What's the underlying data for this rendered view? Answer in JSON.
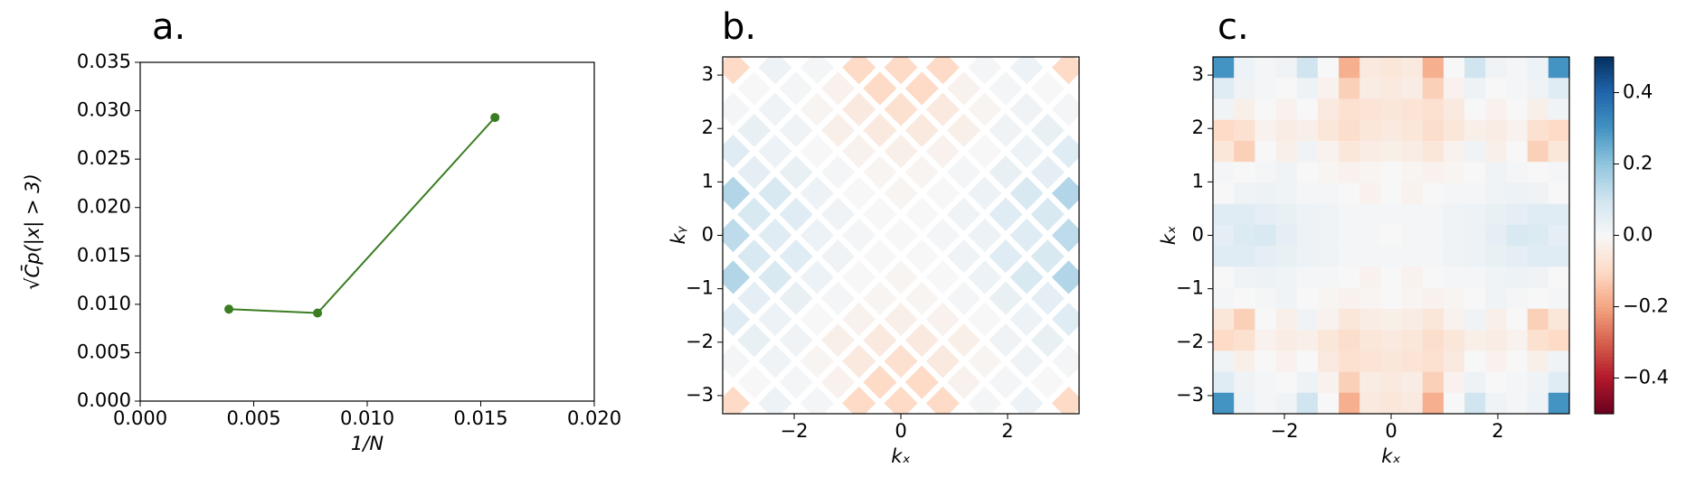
{
  "chart_data": [
    {
      "type": "line",
      "title": "a.",
      "xlabel": "1/N",
      "ylabel": "√C̄p(|x| > 3)",
      "color": "#3a7d22",
      "x": [
        0.00390625,
        0.0078125,
        0.015625
      ],
      "values": [
        0.0095,
        0.0091,
        0.0293
      ],
      "xlim": [
        0,
        0.02
      ],
      "ylim": [
        0,
        0.035
      ],
      "xticks": [
        {
          "value": 0,
          "label": "0.000"
        },
        0.005,
        {
          "value": 0.01,
          "label": "0.010"
        },
        0.015,
        {
          "value": 0.02,
          "label": "0.020"
        }
      ],
      "yticks": [
        {
          "value": 0,
          "label": "0.000"
        },
        0.005,
        {
          "value": 0.01,
          "label": "0.010"
        },
        0.015,
        {
          "value": 0.02,
          "label": "0.020"
        },
        0.025,
        {
          "value": 0.03,
          "label": "0.030"
        },
        0.035
      ]
    },
    {
      "type": "heatmap",
      "marker": "diamond",
      "title": "b.",
      "xlabel": "kₓ",
      "ylabel": "kᵧ",
      "xlim": [
        -3.34,
        3.34
      ],
      "ylim": [
        -3.34,
        3.34
      ],
      "clim": [
        -0.5,
        0.5
      ],
      "xticks": [
        {
          "value": -2,
          "label": "−2"
        },
        0,
        2
      ],
      "yticks": [
        {
          "value": -3,
          "label": "−3"
        },
        {
          "value": -2,
          "label": "−2"
        },
        {
          "value": -1,
          "label": "−1"
        },
        0,
        1,
        2,
        3
      ],
      "z": [
        [
          -0.1,
          null,
          0.03,
          null,
          0.01,
          null,
          -0.1,
          null,
          -0.1,
          null,
          -0.1,
          null,
          0.01,
          null,
          0.03,
          null,
          -0.1
        ],
        [
          null,
          0.0,
          null,
          0.01,
          null,
          -0.02,
          null,
          -0.1,
          null,
          -0.1,
          null,
          -0.02,
          null,
          0.01,
          null,
          0.0,
          null
        ],
        [
          0.01,
          null,
          0.02,
          null,
          -0.01,
          null,
          -0.05,
          null,
          -0.08,
          null,
          -0.05,
          null,
          -0.01,
          null,
          0.02,
          null,
          0.01
        ],
        [
          null,
          0.04,
          null,
          0.02,
          null,
          -0.03,
          null,
          -0.05,
          null,
          -0.05,
          null,
          -0.03,
          null,
          0.02,
          null,
          0.04,
          null
        ],
        [
          0.06,
          null,
          0.03,
          null,
          0.0,
          null,
          -0.02,
          null,
          -0.03,
          null,
          -0.02,
          null,
          0.0,
          null,
          0.03,
          null,
          0.06
        ],
        [
          null,
          0.05,
          null,
          0.04,
          null,
          0.01,
          null,
          -0.01,
          null,
          -0.01,
          null,
          0.01,
          null,
          0.04,
          null,
          0.05,
          null
        ],
        [
          0.15,
          null,
          0.08,
          null,
          0.03,
          null,
          0.0,
          null,
          -0.01,
          null,
          0.0,
          null,
          0.03,
          null,
          0.08,
          null,
          0.15
        ],
        [
          null,
          0.08,
          null,
          0.06,
          null,
          0.02,
          null,
          0.0,
          null,
          0.0,
          null,
          0.02,
          null,
          0.06,
          null,
          0.08,
          null
        ],
        [
          0.13,
          null,
          0.06,
          null,
          0.03,
          null,
          0.01,
          null,
          0.0,
          null,
          0.01,
          null,
          0.03,
          null,
          0.06,
          null,
          0.13
        ],
        [
          null,
          0.08,
          null,
          0.06,
          null,
          0.02,
          null,
          0.0,
          null,
          0.0,
          null,
          0.02,
          null,
          0.06,
          null,
          0.08,
          null
        ],
        [
          0.15,
          null,
          0.08,
          null,
          0.03,
          null,
          0.0,
          null,
          -0.01,
          null,
          0.0,
          null,
          0.03,
          null,
          0.08,
          null,
          0.15
        ],
        [
          null,
          0.05,
          null,
          0.04,
          null,
          0.01,
          null,
          -0.01,
          null,
          -0.01,
          null,
          0.01,
          null,
          0.04,
          null,
          0.05,
          null
        ],
        [
          0.06,
          null,
          0.03,
          null,
          0.0,
          null,
          -0.02,
          null,
          -0.03,
          null,
          -0.02,
          null,
          0.0,
          null,
          0.03,
          null,
          0.06
        ],
        [
          null,
          0.04,
          null,
          0.02,
          null,
          -0.03,
          null,
          -0.05,
          null,
          -0.05,
          null,
          -0.03,
          null,
          0.02,
          null,
          0.04,
          null
        ],
        [
          0.01,
          null,
          0.02,
          null,
          -0.01,
          null,
          -0.05,
          null,
          -0.08,
          null,
          -0.05,
          null,
          -0.01,
          null,
          0.02,
          null,
          0.01
        ],
        [
          null,
          0.0,
          null,
          0.01,
          null,
          -0.02,
          null,
          -0.1,
          null,
          -0.1,
          null,
          -0.02,
          null,
          0.01,
          null,
          0.0,
          null
        ],
        [
          -0.1,
          null,
          0.03,
          null,
          0.01,
          null,
          -0.1,
          null,
          -0.1,
          null,
          -0.1,
          null,
          0.01,
          null,
          0.03,
          null,
          -0.1
        ]
      ]
    },
    {
      "type": "heatmap",
      "marker": "square",
      "title": "c.",
      "xlabel": "kₓ",
      "ylabel": "kₓ",
      "xlim": [
        -3.34,
        3.34
      ],
      "ylim": [
        -3.34,
        3.34
      ],
      "clim": [
        -0.5,
        0.5
      ],
      "xticks": [
        {
          "value": -2,
          "label": "−2"
        },
        0,
        2
      ],
      "yticks": [
        {
          "value": -3,
          "label": "−3"
        },
        {
          "value": -2,
          "label": "−2"
        },
        {
          "value": -1,
          "label": "−1"
        },
        0,
        1,
        2,
        3
      ],
      "colorbar_ticks": [
        {
          "value": -0.4,
          "label": "−0.4"
        },
        {
          "value": -0.2,
          "label": "−0.2"
        },
        {
          "value": 0,
          "label": "0.0"
        },
        0.2,
        0.4
      ],
      "z": [
        [
          0.3,
          0.03,
          0.01,
          0.02,
          0.1,
          0.0,
          -0.18,
          -0.05,
          -0.06,
          -0.05,
          -0.18,
          0.0,
          0.1,
          0.02,
          0.01,
          0.03,
          0.3
        ],
        [
          0.06,
          0.02,
          0.01,
          0.0,
          0.03,
          -0.02,
          -0.12,
          -0.04,
          -0.05,
          -0.04,
          -0.12,
          -0.02,
          0.03,
          0.0,
          0.01,
          0.02,
          0.06
        ],
        [
          0.02,
          -0.03,
          0.0,
          -0.02,
          0.0,
          -0.05,
          -0.08,
          -0.07,
          -0.06,
          -0.07,
          -0.08,
          -0.05,
          0.0,
          -0.02,
          0.0,
          -0.03,
          0.02
        ],
        [
          -0.1,
          -0.08,
          -0.02,
          -0.04,
          -0.03,
          -0.06,
          -0.09,
          -0.06,
          -0.05,
          -0.06,
          -0.09,
          -0.06,
          -0.03,
          -0.04,
          -0.02,
          -0.08,
          -0.1
        ],
        [
          -0.06,
          -0.12,
          0.0,
          -0.03,
          0.02,
          -0.02,
          -0.06,
          -0.04,
          -0.03,
          -0.04,
          -0.06,
          -0.02,
          0.02,
          -0.03,
          0.0,
          -0.12,
          -0.06
        ],
        [
          0.01,
          0.0,
          0.01,
          0.02,
          0.0,
          -0.01,
          -0.02,
          -0.01,
          0.0,
          -0.01,
          -0.02,
          -0.01,
          0.0,
          0.02,
          0.01,
          0.0,
          0.01
        ],
        [
          0.0,
          0.02,
          0.03,
          0.02,
          0.01,
          0.01,
          0.0,
          -0.02,
          0.0,
          -0.02,
          0.0,
          0.01,
          0.01,
          0.02,
          0.03,
          0.02,
          0.0
        ],
        [
          0.06,
          0.06,
          0.05,
          0.04,
          0.03,
          0.02,
          0.01,
          0.01,
          0.01,
          0.01,
          0.01,
          0.02,
          0.03,
          0.04,
          0.05,
          0.06,
          0.06
        ],
        [
          0.05,
          0.07,
          0.08,
          0.05,
          0.03,
          0.02,
          0.01,
          0.01,
          0.0,
          0.01,
          0.01,
          0.02,
          0.03,
          0.05,
          0.08,
          0.07,
          0.05
        ],
        [
          0.06,
          0.06,
          0.05,
          0.04,
          0.03,
          0.02,
          0.01,
          0.01,
          0.01,
          0.01,
          0.01,
          0.02,
          0.03,
          0.04,
          0.05,
          0.06,
          0.06
        ],
        [
          0.0,
          0.02,
          0.03,
          0.02,
          0.01,
          0.01,
          0.0,
          -0.02,
          0.0,
          -0.02,
          0.0,
          0.01,
          0.01,
          0.02,
          0.03,
          0.02,
          0.0
        ],
        [
          0.01,
          0.0,
          0.01,
          0.02,
          0.0,
          -0.01,
          -0.02,
          -0.01,
          0.0,
          -0.01,
          -0.02,
          -0.01,
          0.0,
          0.02,
          0.01,
          0.0,
          0.01
        ],
        [
          -0.06,
          -0.12,
          0.0,
          -0.03,
          0.02,
          -0.02,
          -0.06,
          -0.04,
          -0.03,
          -0.04,
          -0.06,
          -0.02,
          0.02,
          -0.03,
          0.0,
          -0.12,
          -0.06
        ],
        [
          -0.1,
          -0.08,
          -0.02,
          -0.04,
          -0.03,
          -0.06,
          -0.09,
          -0.06,
          -0.05,
          -0.06,
          -0.09,
          -0.06,
          -0.03,
          -0.04,
          -0.02,
          -0.08,
          -0.1
        ],
        [
          0.02,
          -0.03,
          0.0,
          -0.02,
          0.0,
          -0.05,
          -0.08,
          -0.07,
          -0.06,
          -0.07,
          -0.08,
          -0.05,
          0.0,
          -0.02,
          0.0,
          -0.03,
          0.02
        ],
        [
          0.06,
          0.02,
          0.01,
          0.0,
          0.03,
          -0.02,
          -0.12,
          -0.04,
          -0.05,
          -0.04,
          -0.12,
          -0.02,
          0.03,
          0.0,
          0.01,
          0.02,
          0.06
        ],
        [
          0.3,
          0.03,
          0.01,
          0.02,
          0.1,
          0.0,
          -0.18,
          -0.05,
          -0.06,
          -0.05,
          -0.18,
          0.0,
          0.1,
          0.02,
          0.01,
          0.03,
          0.3
        ]
      ]
    }
  ]
}
